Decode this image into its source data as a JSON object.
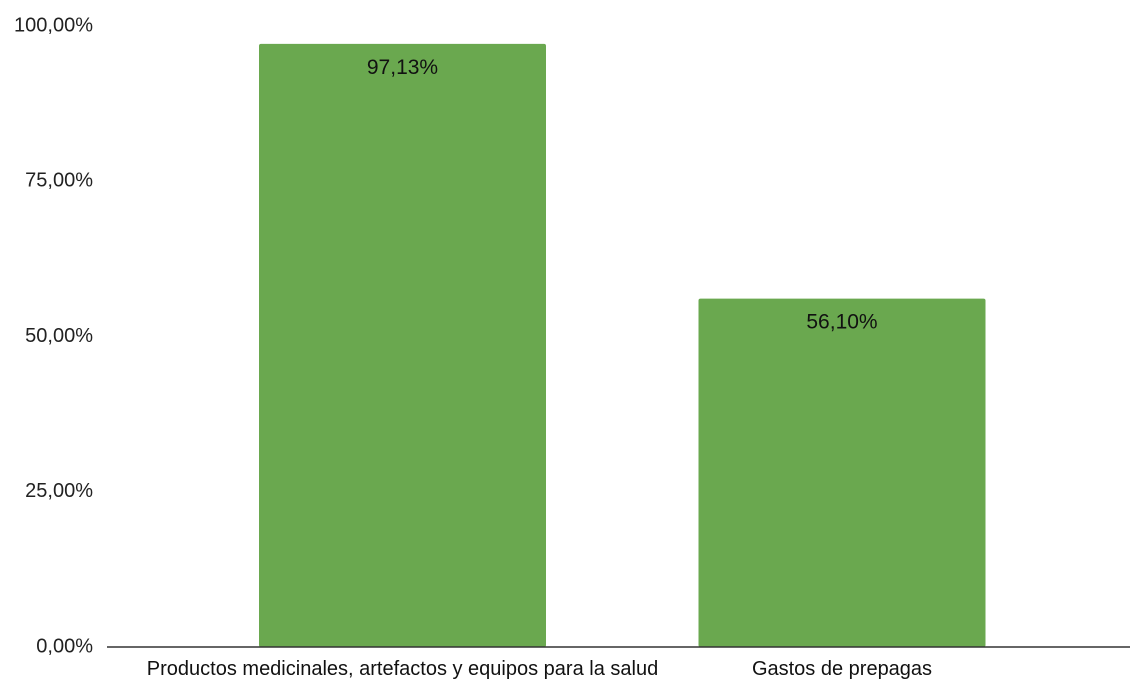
{
  "colors": {
    "bar": "#6aa84f",
    "axis": "#333333",
    "background": "#ffffff"
  },
  "chart_data": {
    "type": "bar",
    "categories": [
      "Productos medicinales, artefactos y equipos para la salud",
      "Gastos de prepagas"
    ],
    "values": [
      97.13,
      56.1
    ],
    "data_labels": [
      "97,13%",
      "56,10%"
    ],
    "y_ticks": [
      0,
      25,
      50,
      75,
      100
    ],
    "y_tick_labels": [
      "0,00%",
      "25,00%",
      "50,00%",
      "75,00%",
      "100,00%"
    ],
    "ylim": [
      0,
      100
    ],
    "title": "",
    "xlabel": "",
    "ylabel": "",
    "grid": false,
    "legend": "none"
  }
}
